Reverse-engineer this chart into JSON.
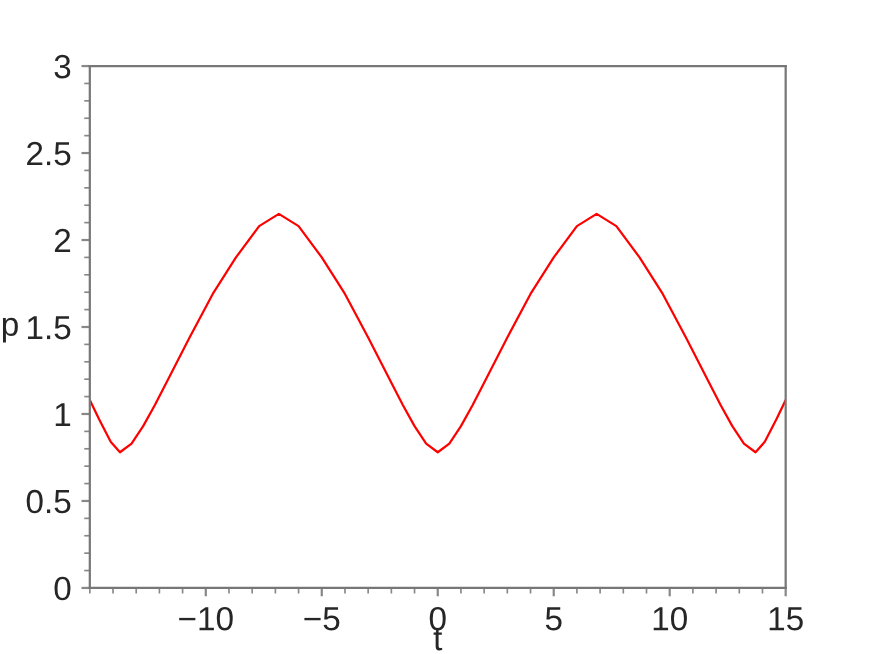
{
  "chart_data": {
    "type": "line",
    "xlabel": "t",
    "ylabel": "p",
    "xlim": [
      -15,
      15
    ],
    "ylim": [
      0,
      3
    ],
    "xticks": [
      {
        "value": -10,
        "label": "−10"
      },
      {
        "value": -5,
        "label": "−5"
      },
      0,
      5,
      10,
      15
    ],
    "yticks": [
      0,
      0.5,
      1,
      1.5,
      2,
      2.5,
      3
    ],
    "grid": false,
    "legend": false,
    "series": [
      {
        "color": "#ff0000",
        "x": [
          -15,
          -14.6,
          -14.1,
          -13.7,
          -13.2,
          -12.7,
          -12.2,
          -11.7,
          -10.7,
          -9.7,
          -8.7,
          -7.7,
          -6.85,
          -6,
          -5,
          -4,
          -3,
          -2,
          -1.5,
          -1,
          -0.5,
          0,
          0.5,
          1,
          1.5,
          2,
          3,
          4,
          5,
          6,
          6.85,
          7.7,
          8.7,
          9.7,
          10.7,
          11.7,
          12.2,
          12.7,
          13.2,
          13.7,
          14.1,
          14.6,
          15
        ],
        "values": [
          1.08,
          0.97,
          0.84,
          0.78,
          0.83,
          0.93,
          1.05,
          1.18,
          1.44,
          1.69,
          1.9,
          2.08,
          2.15,
          2.08,
          1.9,
          1.69,
          1.44,
          1.18,
          1.05,
          0.93,
          0.83,
          0.78,
          0.83,
          0.93,
          1.05,
          1.18,
          1.44,
          1.69,
          1.9,
          2.08,
          2.15,
          2.08,
          1.9,
          1.69,
          1.44,
          1.18,
          1.05,
          0.93,
          0.83,
          0.78,
          0.84,
          0.97,
          1.08
        ]
      }
    ]
  }
}
